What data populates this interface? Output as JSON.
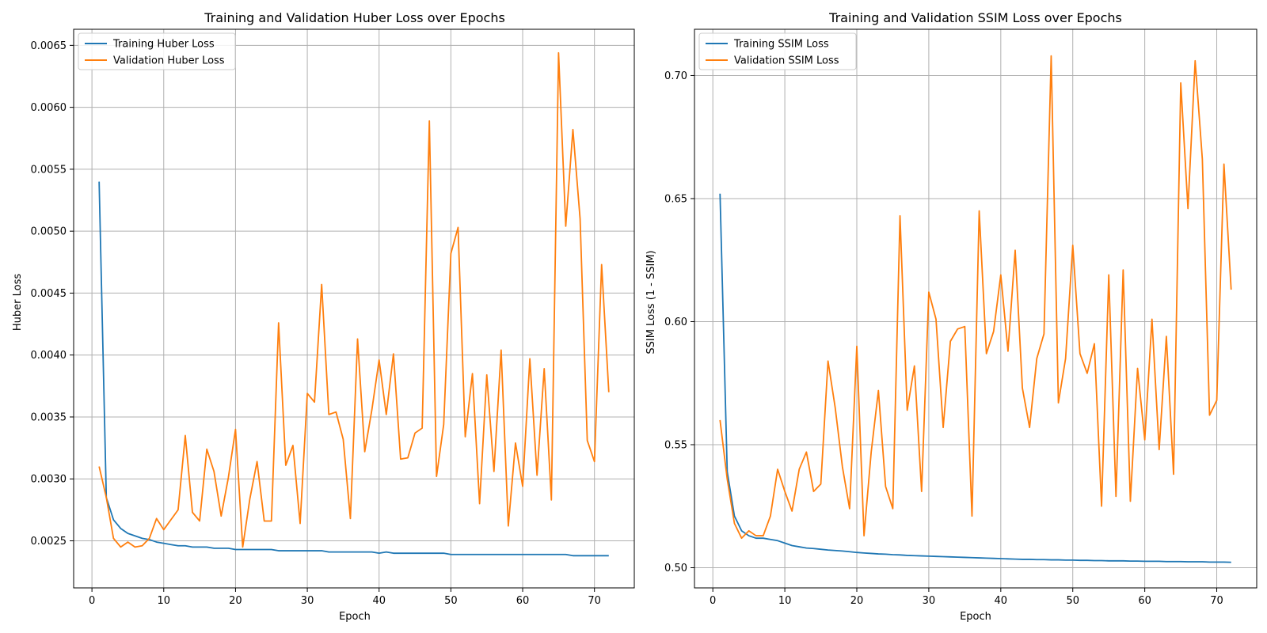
{
  "colors": {
    "training": "#1f77b4",
    "validation": "#ff7f0e",
    "grid": "#b0b0b0"
  },
  "chart_data": [
    {
      "type": "line",
      "title": "Training and Validation Huber Loss over Epochs",
      "xlabel": "Epoch",
      "ylabel": "Huber Loss",
      "xlim": [
        -2.55,
        75.55
      ],
      "ylim": [
        0.00212,
        0.00663
      ],
      "xticks": [
        0,
        10,
        20,
        30,
        40,
        50,
        60,
        70
      ],
      "xtick_labels": [
        "0",
        "10",
        "20",
        "30",
        "40",
        "50",
        "60",
        "70"
      ],
      "yticks": [
        0.0025,
        0.003,
        0.0035,
        0.004,
        0.0045,
        0.005,
        0.0055,
        0.006,
        0.0065
      ],
      "ytick_labels": [
        "0.0025",
        "0.0030",
        "0.0035",
        "0.0040",
        "0.0045",
        "0.0050",
        "0.0055",
        "0.0060",
        "0.0065"
      ],
      "grid": true,
      "legend": "upper-left",
      "x": [
        1,
        2,
        3,
        4,
        5,
        6,
        7,
        8,
        9,
        10,
        11,
        12,
        13,
        14,
        15,
        16,
        17,
        18,
        19,
        20,
        21,
        22,
        23,
        24,
        25,
        26,
        27,
        28,
        29,
        30,
        31,
        32,
        33,
        34,
        35,
        36,
        37,
        38,
        39,
        40,
        41,
        42,
        43,
        44,
        45,
        46,
        47,
        48,
        49,
        50,
        51,
        52,
        53,
        54,
        55,
        56,
        57,
        58,
        59,
        60,
        61,
        62,
        63,
        64,
        65,
        66,
        67,
        68,
        69,
        70,
        71,
        72
      ],
      "series": [
        {
          "name": "Training Huber Loss",
          "color_key": "training",
          "values": [
            0.0054,
            0.00285,
            0.00267,
            0.0026,
            0.00256,
            0.00254,
            0.00252,
            0.00251,
            0.00249,
            0.00248,
            0.00247,
            0.00246,
            0.00246,
            0.00245,
            0.00245,
            0.00245,
            0.00244,
            0.00244,
            0.00244,
            0.00243,
            0.00243,
            0.00243,
            0.00243,
            0.00243,
            0.00243,
            0.00242,
            0.00242,
            0.00242,
            0.00242,
            0.00242,
            0.00242,
            0.00242,
            0.00241,
            0.00241,
            0.00241,
            0.00241,
            0.00241,
            0.00241,
            0.00241,
            0.0024,
            0.00241,
            0.0024,
            0.0024,
            0.0024,
            0.0024,
            0.0024,
            0.0024,
            0.0024,
            0.0024,
            0.00239,
            0.00239,
            0.00239,
            0.00239,
            0.00239,
            0.00239,
            0.00239,
            0.00239,
            0.00239,
            0.00239,
            0.00239,
            0.00239,
            0.00239,
            0.00239,
            0.00239,
            0.00239,
            0.00239,
            0.00238,
            0.00238,
            0.00238,
            0.00238,
            0.00238,
            0.00238
          ]
        },
        {
          "name": "Validation Huber Loss",
          "color_key": "validation",
          "values": [
            0.0031,
            0.00285,
            0.00252,
            0.00245,
            0.00249,
            0.00245,
            0.00246,
            0.00252,
            0.00268,
            0.00259,
            0.00267,
            0.00275,
            0.00335,
            0.00273,
            0.00266,
            0.00324,
            0.00306,
            0.0027,
            0.00301,
            0.0034,
            0.00245,
            0.00284,
            0.00314,
            0.00266,
            0.00266,
            0.00426,
            0.00311,
            0.00327,
            0.00264,
            0.00369,
            0.00362,
            0.00457,
            0.00352,
            0.00354,
            0.00332,
            0.00268,
            0.00413,
            0.00322,
            0.00356,
            0.00396,
            0.00352,
            0.00401,
            0.00316,
            0.00317,
            0.00337,
            0.00341,
            0.00589,
            0.00302,
            0.00344,
            0.00482,
            0.00503,
            0.00334,
            0.00385,
            0.0028,
            0.00384,
            0.00306,
            0.00404,
            0.00262,
            0.00329,
            0.00294,
            0.00397,
            0.00303,
            0.00389,
            0.00283,
            0.00644,
            0.00504,
            0.00582,
            0.0051,
            0.00331,
            0.00314,
            0.00473,
            0.0037
          ]
        }
      ]
    },
    {
      "type": "line",
      "title": "Training and Validation SSIM Loss over Epochs",
      "xlabel": "Epoch",
      "ylabel": "SSIM Loss (1 - SSIM)",
      "xlim": [
        -2.55,
        75.55
      ],
      "ylim": [
        0.4918,
        0.7188
      ],
      "xticks": [
        0,
        10,
        20,
        30,
        40,
        50,
        60,
        70
      ],
      "xtick_labels": [
        "0",
        "10",
        "20",
        "30",
        "40",
        "50",
        "60",
        "70"
      ],
      "yticks": [
        0.5,
        0.55,
        0.6,
        0.65,
        0.7
      ],
      "ytick_labels": [
        "0.50",
        "0.55",
        "0.60",
        "0.65",
        "0.70"
      ],
      "grid": true,
      "legend": "upper-left",
      "x": [
        1,
        2,
        3,
        4,
        5,
        6,
        7,
        8,
        9,
        10,
        11,
        12,
        13,
        14,
        15,
        16,
        17,
        18,
        19,
        20,
        21,
        22,
        23,
        24,
        25,
        26,
        27,
        28,
        29,
        30,
        31,
        32,
        33,
        34,
        35,
        36,
        37,
        38,
        39,
        40,
        41,
        42,
        43,
        44,
        45,
        46,
        47,
        48,
        49,
        50,
        51,
        52,
        53,
        54,
        55,
        56,
        57,
        58,
        59,
        60,
        61,
        62,
        63,
        64,
        65,
        66,
        67,
        68,
        69,
        70,
        71,
        72
      ],
      "series": [
        {
          "name": "Training SSIM Loss",
          "color_key": "training",
          "values": [
            0.652,
            0.539,
            0.521,
            0.515,
            0.513,
            0.512,
            0.512,
            0.5115,
            0.511,
            0.51,
            0.509,
            0.5085,
            0.508,
            0.5078,
            0.5075,
            0.5072,
            0.507,
            0.5068,
            0.5065,
            0.5062,
            0.506,
            0.5058,
            0.5056,
            0.5055,
            0.5053,
            0.5052,
            0.505,
            0.5049,
            0.5048,
            0.5047,
            0.5046,
            0.5045,
            0.5044,
            0.5043,
            0.5042,
            0.5041,
            0.504,
            0.5039,
            0.5038,
            0.5037,
            0.5036,
            0.5035,
            0.5034,
            0.5034,
            0.5033,
            0.5033,
            0.5032,
            0.5032,
            0.5031,
            0.5031,
            0.503,
            0.503,
            0.5029,
            0.5029,
            0.5028,
            0.5028,
            0.5028,
            0.5027,
            0.5027,
            0.5026,
            0.5026,
            0.5026,
            0.5025,
            0.5025,
            0.5025,
            0.5024,
            0.5024,
            0.5024,
            0.5023,
            0.5023,
            0.5023,
            0.5022
          ]
        },
        {
          "name": "Validation SSIM Loss",
          "color_key": "validation",
          "values": [
            0.56,
            0.536,
            0.518,
            0.512,
            0.515,
            0.513,
            0.513,
            0.521,
            0.54,
            0.531,
            0.523,
            0.54,
            0.547,
            0.531,
            0.534,
            0.584,
            0.565,
            0.541,
            0.524,
            0.59,
            0.513,
            0.547,
            0.572,
            0.533,
            0.524,
            0.643,
            0.564,
            0.582,
            0.531,
            0.612,
            0.601,
            0.557,
            0.592,
            0.597,
            0.598,
            0.521,
            0.645,
            0.587,
            0.596,
            0.619,
            0.588,
            0.629,
            0.573,
            0.557,
            0.585,
            0.595,
            0.708,
            0.567,
            0.585,
            0.631,
            0.587,
            0.579,
            0.591,
            0.525,
            0.619,
            0.529,
            0.621,
            0.527,
            0.581,
            0.552,
            0.601,
            0.548,
            0.594,
            0.538,
            0.697,
            0.646,
            0.706,
            0.666,
            0.562,
            0.568,
            0.664,
            0.613
          ]
        }
      ]
    }
  ]
}
